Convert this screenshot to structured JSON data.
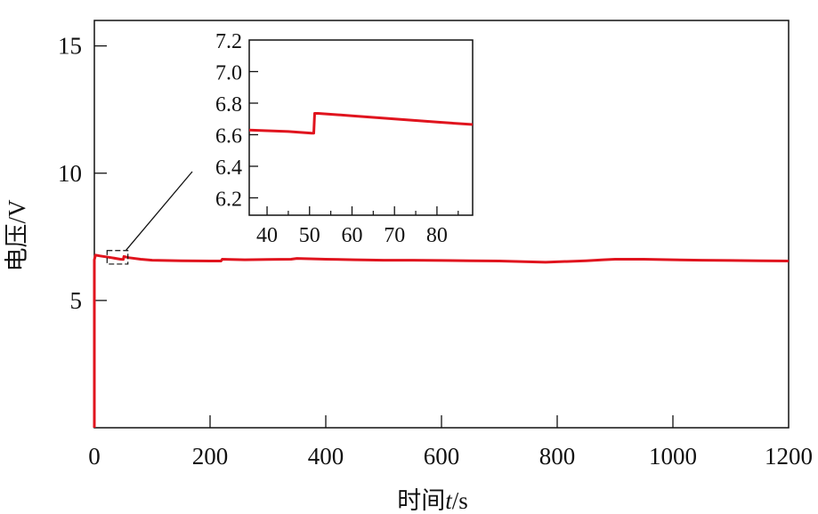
{
  "chart_data": [
    {
      "type": "line",
      "panel": "main",
      "xlabel": {
        "prefix": "时间",
        "var": "t",
        "suffix": "/s"
      },
      "ylabel": "电压/V",
      "xlim": [
        0,
        1200
      ],
      "ylim": [
        0,
        16
      ],
      "xticks": [
        "0",
        "200",
        "400",
        "600",
        "800",
        "1000",
        "1200"
      ],
      "yticks": [
        "5",
        "10",
        "15"
      ],
      "grid": false,
      "color": "#e0141e",
      "series": [
        {
          "x": [
            0,
            0,
            2,
            10,
            30,
            45,
            50,
            51,
            60,
            80,
            100,
            150,
            200,
            219,
            221,
            260,
            300,
            340,
            350,
            400,
            450,
            500,
            550,
            600,
            650,
            700,
            750,
            780,
            800,
            850,
            880,
            900,
            950,
            1000,
            1050,
            1100,
            1150,
            1200
          ],
          "y": [
            0,
            6.6,
            6.78,
            6.75,
            6.68,
            6.62,
            6.61,
            6.73,
            6.68,
            6.62,
            6.58,
            6.56,
            6.55,
            6.55,
            6.62,
            6.6,
            6.61,
            6.62,
            6.65,
            6.62,
            6.6,
            6.58,
            6.58,
            6.57,
            6.56,
            6.55,
            6.52,
            6.5,
            6.52,
            6.56,
            6.6,
            6.62,
            6.62,
            6.6,
            6.58,
            6.57,
            6.56,
            6.55
          ]
        }
      ]
    },
    {
      "type": "line",
      "panel": "inset",
      "xlim": [
        35.8,
        88.4
      ],
      "ylim": [
        6.09,
        7.2
      ],
      "xticks": [
        "40",
        "50",
        "60",
        "70",
        "80"
      ],
      "yticks": [
        "6.2",
        "6.4",
        "6.6",
        "6.8",
        "7.0",
        "7.2"
      ],
      "grid": false,
      "color": "#e0141e",
      "series": [
        {
          "x": [
            35.8,
            40,
            45,
            50.5,
            51,
            51.2,
            52,
            60,
            70,
            80,
            88.4
          ],
          "y": [
            6.63,
            6.625,
            6.62,
            6.61,
            6.61,
            6.735,
            6.735,
            6.72,
            6.7,
            6.68,
            6.665
          ]
        }
      ]
    }
  ]
}
